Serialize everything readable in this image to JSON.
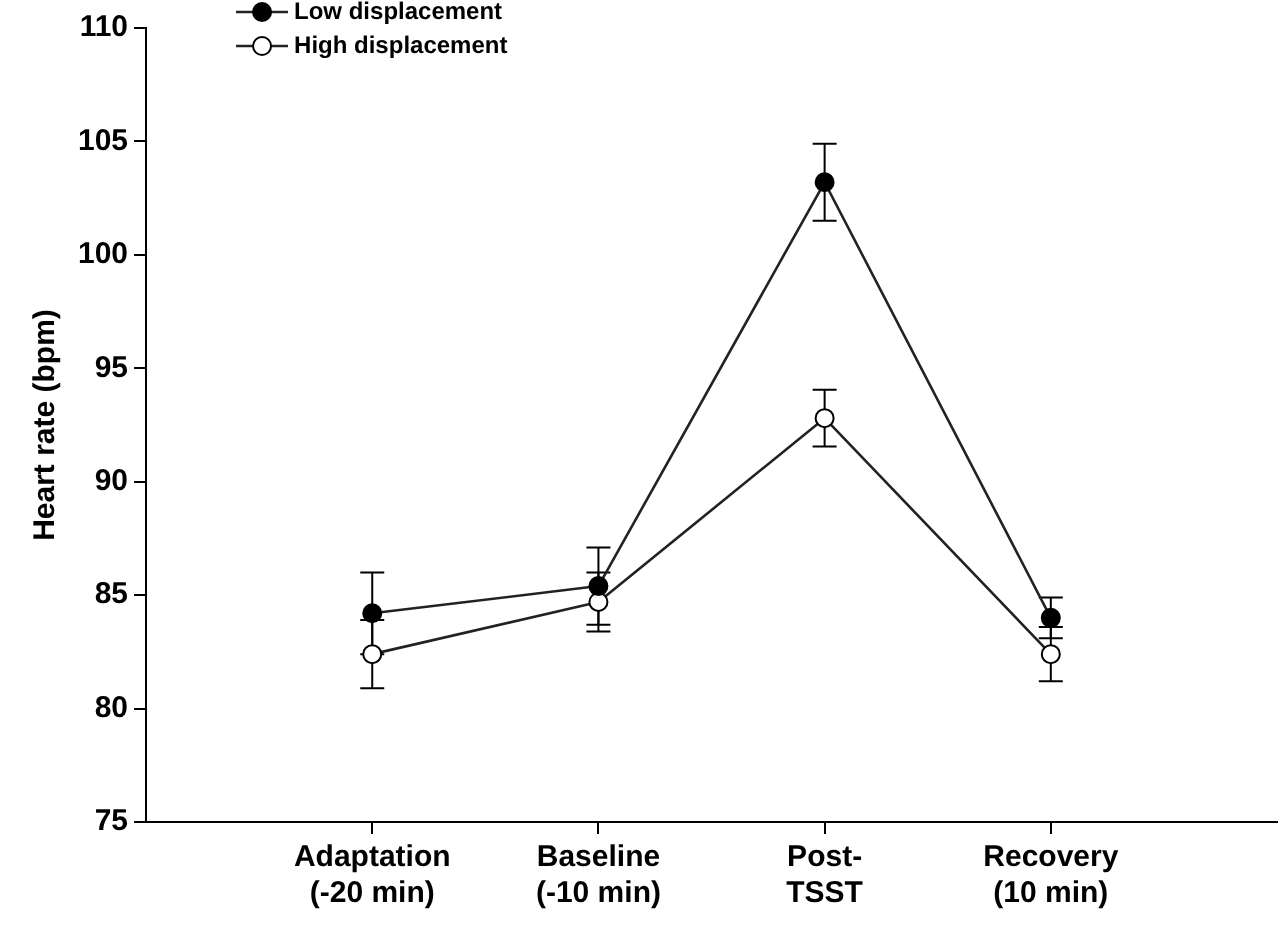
{
  "chart_data": {
    "type": "line",
    "ylabel": "Heart rate (bpm)",
    "categories": [
      "Adaptation\n(-20 min)",
      "Baseline\n(-10 min)",
      "Post-\nTSST",
      "Recovery\n(10 min)"
    ],
    "series": [
      {
        "name": "Low displacement",
        "color": "#000000",
        "values": [
          84.2,
          85.4,
          103.2,
          84.0
        ],
        "errors": [
          1.8,
          1.7,
          1.7,
          0.9
        ],
        "marker": "circle"
      },
      {
        "name": "High displacement",
        "color": "#ffffff",
        "values": [
          82.4,
          84.7,
          92.8,
          82.4
        ],
        "errors": [
          1.5,
          1.3,
          1.25,
          1.2
        ],
        "marker": "circle"
      }
    ],
    "ylim": [
      75,
      110
    ],
    "yticks": [
      75,
      80,
      85,
      90,
      95,
      100,
      105,
      110
    ],
    "grid": false,
    "legend": "top left"
  }
}
